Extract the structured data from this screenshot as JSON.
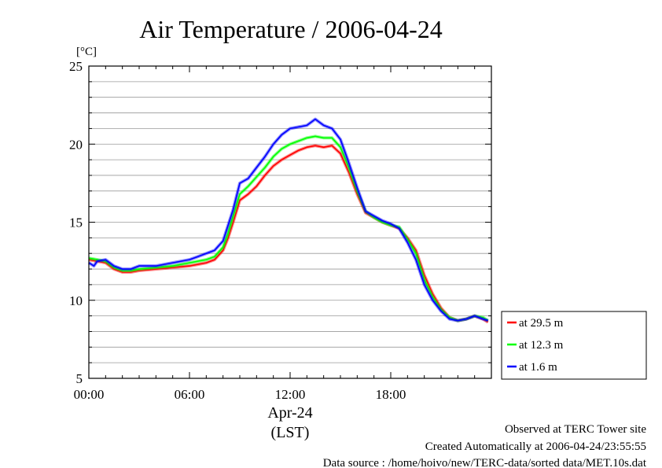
{
  "chart_data": {
    "type": "line",
    "title": "Air Temperature / 2006-04-24",
    "ylabel_unit": "[°C]",
    "ylim": [
      5,
      25
    ],
    "xlim": [
      0,
      24
    ],
    "y_ticks": [
      5,
      10,
      15,
      20,
      25
    ],
    "x_ticks": [
      {
        "value": 0,
        "label": "00:00"
      },
      {
        "value": 6,
        "label": "06:00"
      },
      {
        "value": 12,
        "label": "12:00"
      },
      {
        "value": 18,
        "label": "18:00"
      }
    ],
    "x_date_label": "Apr-24",
    "x_timezone_label": "(LST)",
    "grid": true,
    "legend_position": "right-bottom, outside plot",
    "series": [
      {
        "name": "at 29.5 m",
        "color": "#ff0000",
        "x": [
          0,
          0.5,
          1,
          1.5,
          2,
          2.5,
          3,
          4,
          5,
          6,
          6.5,
          7,
          7.5,
          8,
          8.3,
          8.6,
          9,
          9.5,
          10,
          10.5,
          11,
          11.5,
          12,
          12.5,
          13,
          13.5,
          14,
          14.5,
          15,
          15.5,
          16,
          16.5,
          17,
          17.5,
          18,
          18.5,
          19,
          19.5,
          20,
          20.5,
          21,
          21.5,
          22,
          22.5,
          23,
          23.5,
          23.8
        ],
        "y": [
          12.6,
          12.5,
          12.4,
          12.0,
          11.8,
          11.8,
          11.9,
          12.0,
          12.1,
          12.2,
          12.3,
          12.4,
          12.6,
          13.2,
          14.0,
          15.0,
          16.4,
          16.8,
          17.3,
          18.0,
          18.6,
          19.0,
          19.3,
          19.6,
          19.8,
          19.9,
          19.8,
          19.9,
          19.4,
          18.2,
          16.8,
          15.6,
          15.3,
          15.0,
          14.8,
          14.6,
          14.0,
          13.2,
          11.6,
          10.4,
          9.5,
          8.9,
          8.7,
          8.8,
          9.0,
          8.8,
          8.6
        ]
      },
      {
        "name": "at 12.3 m",
        "color": "#00ff00",
        "x": [
          0,
          0.5,
          1,
          1.5,
          2,
          2.5,
          3,
          4,
          5,
          6,
          6.5,
          7,
          7.5,
          8,
          8.3,
          8.6,
          9,
          9.5,
          10,
          10.5,
          11,
          11.5,
          12,
          12.5,
          13,
          13.5,
          14,
          14.5,
          15,
          15.5,
          16,
          16.5,
          17,
          17.5,
          18,
          18.5,
          19,
          19.5,
          20,
          20.5,
          21,
          21.5,
          22,
          22.5,
          23,
          23.5,
          23.8
        ],
        "y": [
          12.7,
          12.6,
          12.5,
          12.1,
          11.9,
          11.9,
          12.0,
          12.1,
          12.2,
          12.4,
          12.5,
          12.6,
          12.8,
          13.4,
          14.3,
          15.4,
          16.8,
          17.3,
          17.9,
          18.5,
          19.2,
          19.7,
          20.0,
          20.2,
          20.4,
          20.5,
          20.4,
          20.4,
          19.8,
          18.5,
          17.0,
          15.7,
          15.3,
          15.0,
          14.8,
          14.7,
          13.9,
          13.0,
          11.3,
          10.2,
          9.4,
          8.9,
          8.7,
          8.8,
          9.0,
          8.9,
          8.7
        ]
      },
      {
        "name": "at 1.6 m",
        "color": "#0000ff",
        "x": [
          0,
          0.3,
          0.5,
          1,
          1.5,
          2,
          2.5,
          3,
          4,
          5,
          6,
          6.5,
          7,
          7.5,
          8,
          8.3,
          8.6,
          9,
          9.5,
          10,
          10.5,
          11,
          11.5,
          12,
          12.5,
          13,
          13.5,
          14,
          14.5,
          15,
          15.5,
          16,
          16.5,
          17,
          17.5,
          18,
          18.5,
          19,
          19.5,
          20,
          20.5,
          21,
          21.5,
          22,
          22.5,
          23,
          23.5,
          23.8
        ],
        "y": [
          12.4,
          12.2,
          12.5,
          12.6,
          12.2,
          12.0,
          12.0,
          12.2,
          12.2,
          12.4,
          12.6,
          12.8,
          13.0,
          13.2,
          13.8,
          14.8,
          15.8,
          17.5,
          17.8,
          18.5,
          19.2,
          20.0,
          20.6,
          21.0,
          21.1,
          21.2,
          21.6,
          21.2,
          21.0,
          20.3,
          18.8,
          17.2,
          15.7,
          15.4,
          15.1,
          14.9,
          14.6,
          13.7,
          12.6,
          11.0,
          10.0,
          9.3,
          8.8,
          8.7,
          8.8,
          9.0,
          8.8,
          8.7
        ]
      }
    ]
  },
  "footer": {
    "site": "Observed at TERC Tower site",
    "created": "Created Automatically at 2006-04-24/23:55:55",
    "source": "Data source : /home/hoivo/new/TERC-data/sorted  data/MET.10s.dat"
  }
}
